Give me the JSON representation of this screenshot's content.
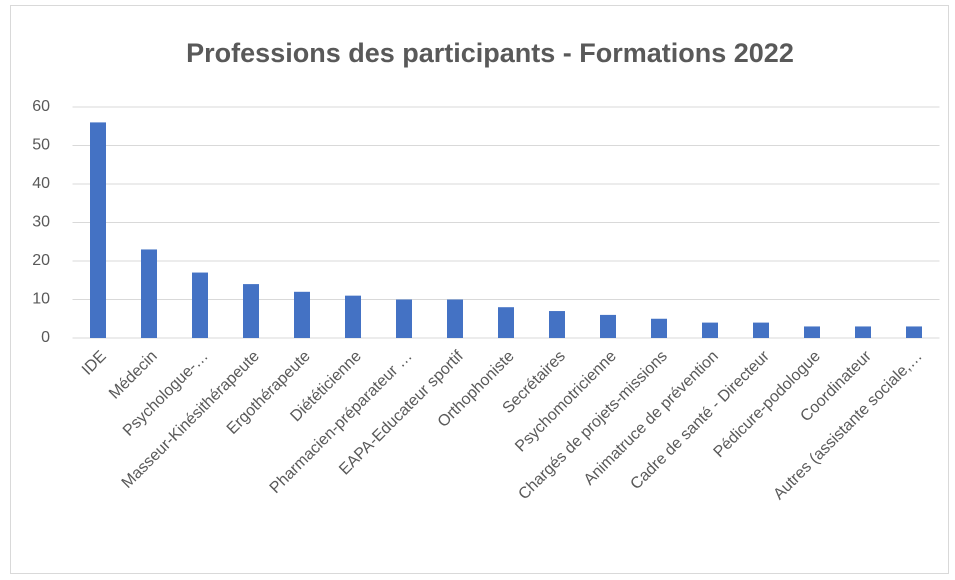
{
  "chart_data": {
    "type": "bar",
    "title": "Professions des participants - Formations 2022",
    "categories": [
      "IDE",
      "Médecin",
      "Psychologue-…",
      "Masseur-Kinésithérapeute",
      "Ergothérapeute",
      "Diététicienne",
      "Pharmacien-préparateur …",
      "EAPA-Educateur sportif",
      "Orthophoniste",
      "Secrétaires",
      "Psychomotricienne",
      "Chargés de projets-missions",
      "Animatruce de prévention",
      "Cadre de santé - Directeur",
      "Pédicure-podologue",
      "Coordinateur",
      "Autres (assistante sociale,…"
    ],
    "values": [
      56,
      23,
      17,
      14,
      12,
      11,
      10,
      10,
      8,
      7,
      6,
      5,
      4,
      4,
      3,
      3,
      3
    ],
    "color": "#4472c4",
    "ylim": [
      0,
      60
    ],
    "yticks": [
      0,
      10,
      20,
      30,
      40,
      50,
      60
    ],
    "grid": true
  }
}
